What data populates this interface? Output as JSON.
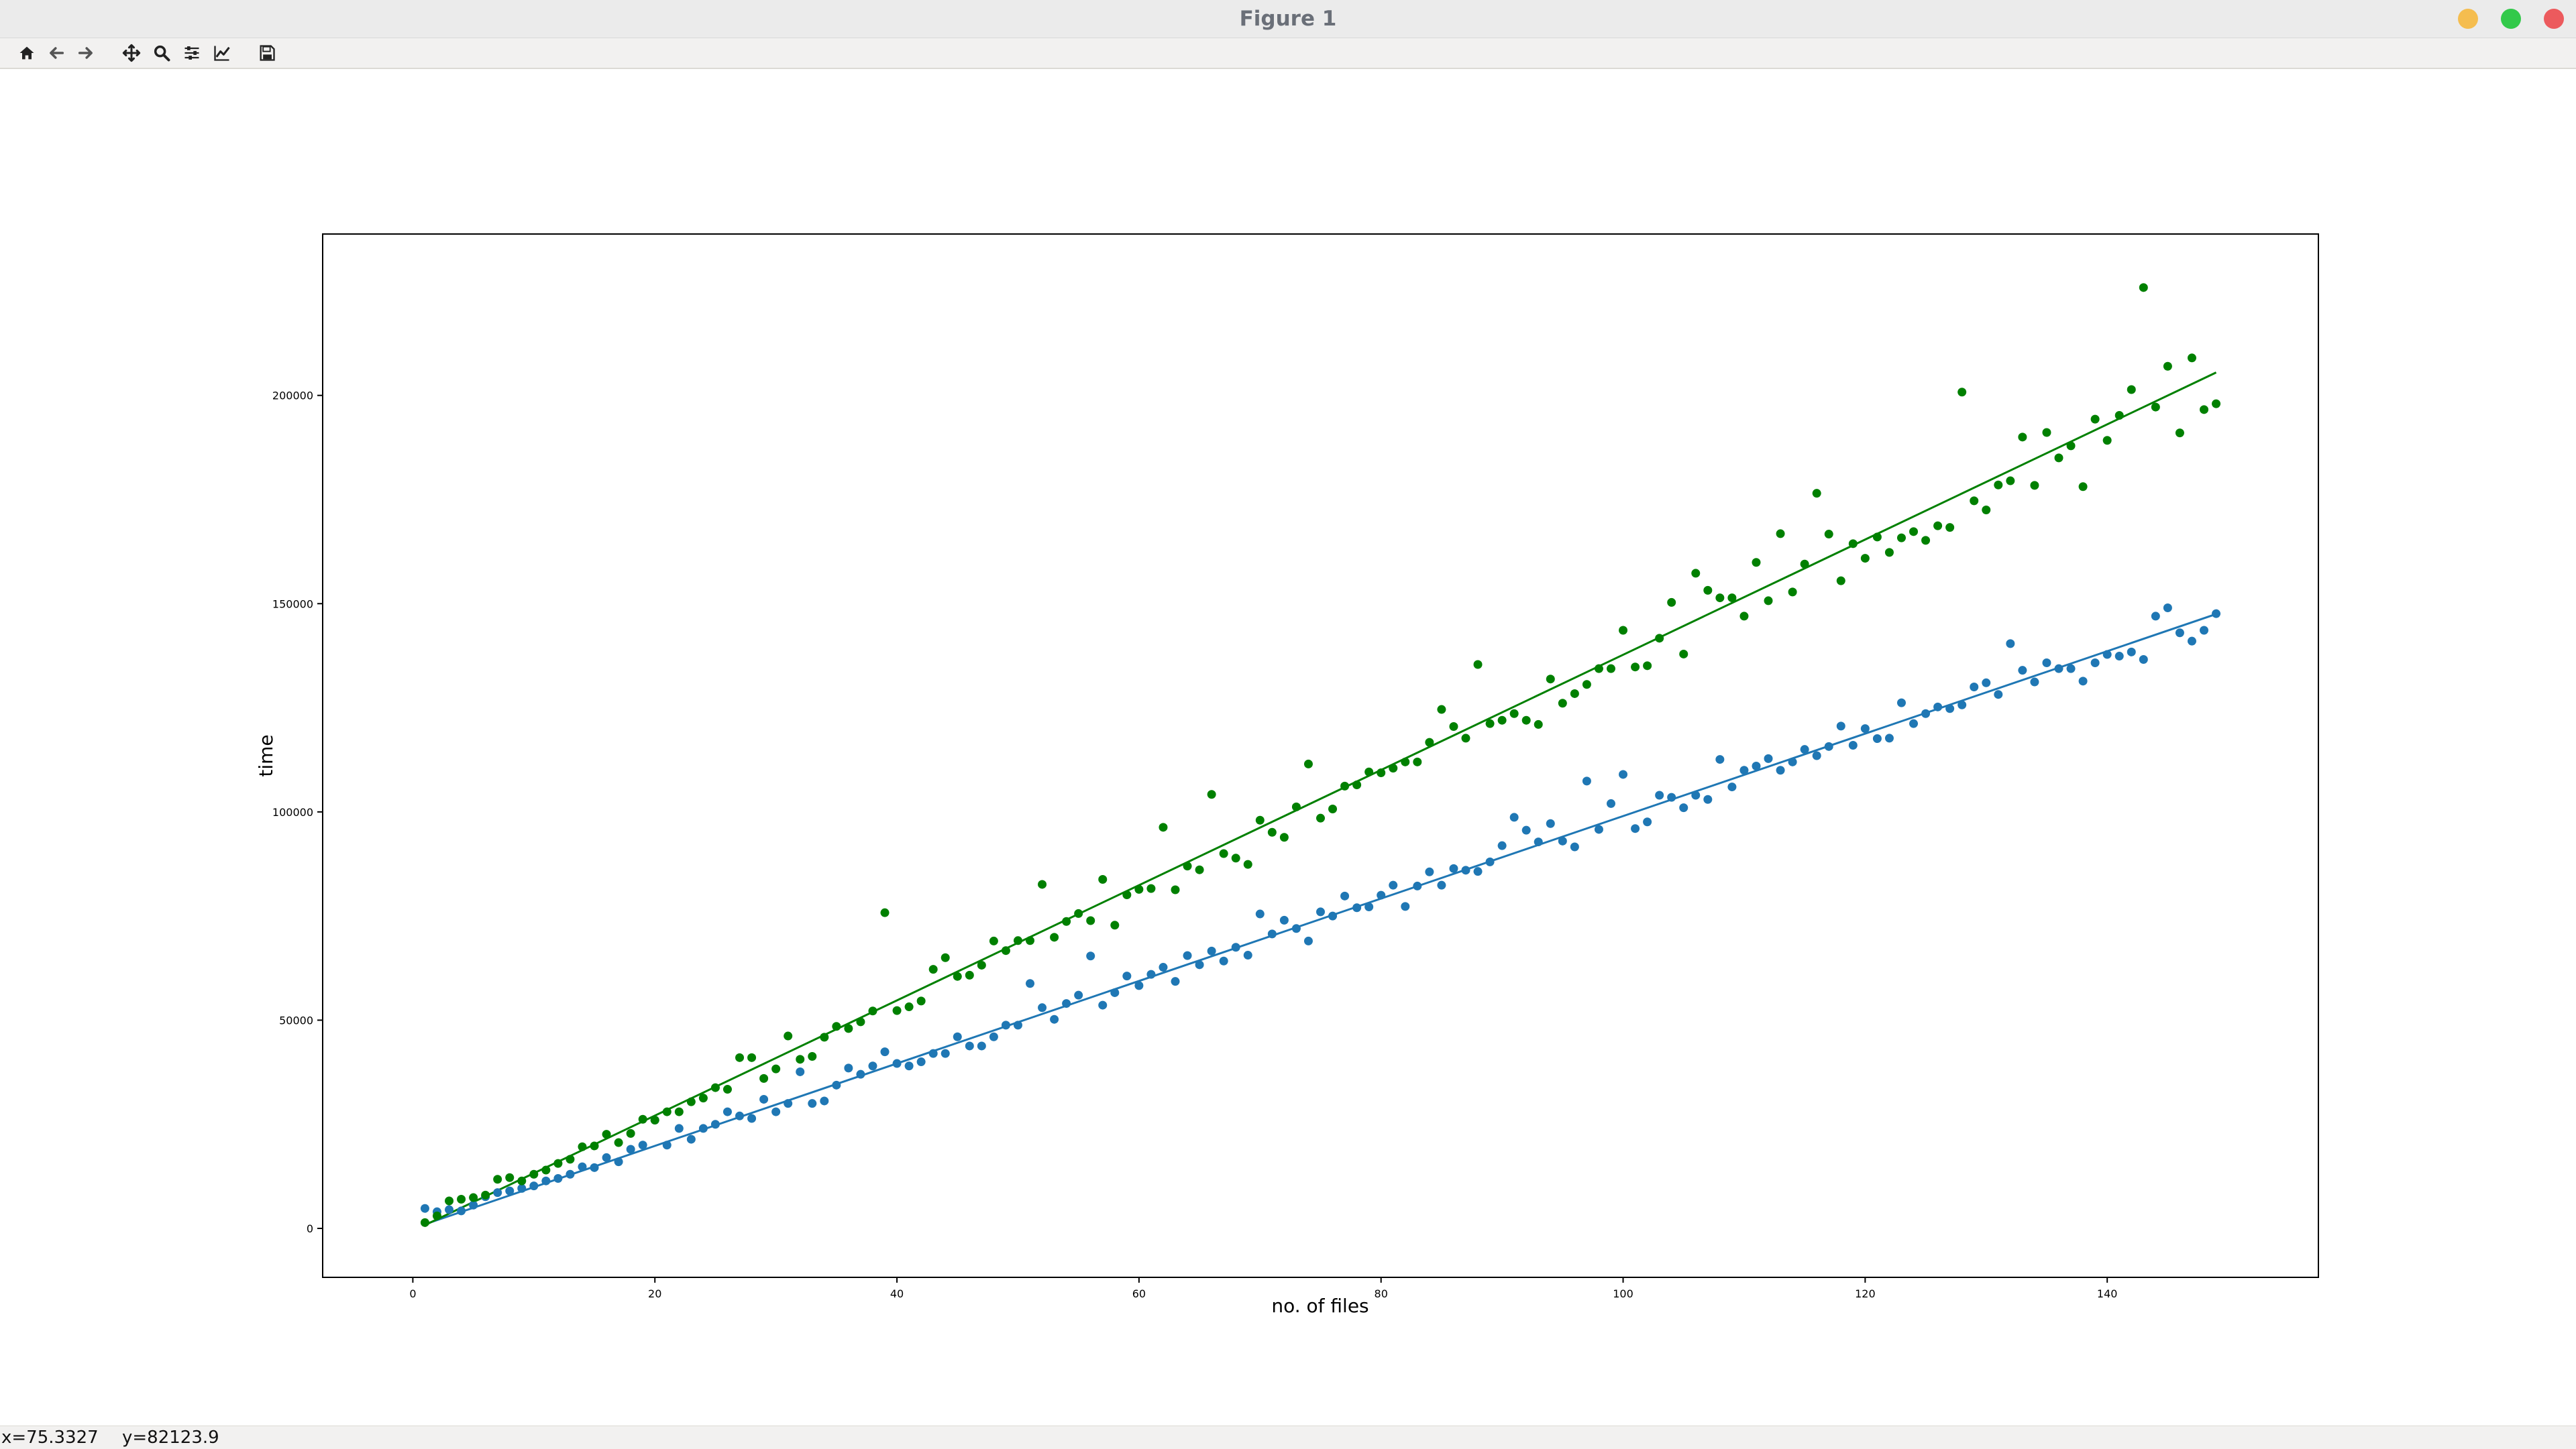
{
  "window": {
    "title": "Figure 1"
  },
  "toolbar": {
    "tools": [
      {
        "name": "home-icon"
      },
      {
        "name": "back-arrow-icon"
      },
      {
        "name": "forward-arrow-icon"
      },
      {
        "name": "pan-icon"
      },
      {
        "name": "zoom-icon"
      },
      {
        "name": "configure-subplots-icon"
      },
      {
        "name": "edit-axis-icon"
      },
      {
        "name": "save-icon"
      }
    ]
  },
  "status": {
    "x": "x=75.3327",
    "y": "y=82123.9"
  },
  "colors": {
    "blue": "#1f77b4",
    "green": "#008000"
  },
  "chart_data": {
    "type": "scatter",
    "title": "",
    "xlabel": "no. of files",
    "ylabel": "time",
    "xlim": [
      -7.45,
      157.45
    ],
    "ylim": [
      -11750,
      238750
    ],
    "xticks": [
      0,
      20,
      40,
      60,
      80,
      100,
      120,
      140
    ],
    "yticks": [
      0,
      50000,
      100000,
      150000,
      200000
    ],
    "grid": false,
    "series": [
      {
        "color": "#1f77b4",
        "marker": "point",
        "x": [
          1,
          2,
          3,
          4,
          5,
          6,
          7,
          8,
          9,
          10,
          11,
          12,
          13,
          14,
          15,
          16,
          17,
          18,
          19,
          20,
          21,
          22,
          23,
          24,
          25,
          26,
          27,
          28,
          29,
          30,
          31,
          32,
          33,
          34,
          35,
          36,
          37,
          38,
          39,
          40,
          41,
          42,
          43,
          44,
          45,
          46,
          47,
          48,
          49,
          50,
          51,
          52,
          53,
          54,
          55,
          56,
          57,
          58,
          59,
          60,
          61,
          62,
          63,
          64,
          65,
          66,
          67,
          68,
          69,
          70,
          71,
          72,
          73,
          74,
          75,
          76,
          77,
          78,
          79,
          80,
          81,
          82,
          83,
          84,
          85,
          86,
          87,
          88,
          89,
          90,
          91,
          92,
          93,
          94,
          95,
          96,
          97,
          98,
          99,
          100,
          101,
          102,
          103,
          104,
          105,
          106,
          107,
          108,
          109,
          110,
          111,
          112,
          113,
          114,
          115,
          116,
          117,
          118,
          119,
          120,
          121,
          122,
          123,
          124,
          125,
          126,
          127,
          128,
          129,
          130,
          131,
          132,
          133,
          134,
          135,
          136,
          137,
          138,
          139,
          140,
          141,
          142,
          143,
          144,
          145,
          146,
          147,
          148,
          149
        ],
        "y": [
          4800,
          4000,
          4500,
          4200,
          5600,
          7600,
          8600,
          9000,
          9600,
          10200,
          11400,
          12000,
          13000,
          14800,
          14600,
          17000,
          16000,
          19000,
          20000,
          26000,
          20000,
          24000,
          21400,
          24000,
          25000,
          28000,
          27000,
          26400,
          31000,
          28000,
          30000,
          37600,
          30000,
          30600,
          34400,
          38500,
          37000,
          39000,
          42400,
          39600,
          39000,
          40000,
          42000,
          42000,
          46000,
          43800,
          43800,
          46000,
          48800,
          48800,
          58800,
          53000,
          50200,
          54000,
          56000,
          65400,
          53600,
          56600,
          60600,
          58300,
          61000,
          62700,
          59300,
          65500,
          63300,
          66600,
          64200,
          67500,
          65600,
          75500,
          70700,
          74000,
          72000,
          69000,
          76000,
          75000,
          79800,
          77000,
          77200,
          80000,
          82400,
          77300,
          82200,
          85600,
          82400,
          86400,
          86000,
          85700,
          88000,
          91900,
          98700,
          95600,
          92800,
          97200,
          93000,
          91600,
          107400,
          95800,
          102000,
          109000,
          96000,
          97600,
          104000,
          103500,
          101000,
          104000,
          103000,
          112600,
          106000,
          110000,
          111000,
          112800,
          110000,
          112000,
          115000,
          113500,
          115700,
          120600,
          116000,
          120000,
          117600,
          117700,
          126200,
          121200,
          123600,
          125200,
          124800,
          125700,
          130000,
          131000,
          128200,
          140400,
          134000,
          131200,
          135800,
          134400,
          134400,
          131400,
          135800,
          137800,
          137400,
          138400,
          136600,
          147000,
          149000,
          143000,
          141000,
          143600,
          147600
        ],
        "fit": [
          [
            1,
            1000
          ],
          [
            149,
            147500
          ]
        ]
      },
      {
        "color": "#008000",
        "marker": "point",
        "x": [
          1,
          2,
          3,
          4,
          5,
          6,
          7,
          8,
          9,
          10,
          11,
          12,
          13,
          14,
          15,
          16,
          17,
          18,
          19,
          20,
          21,
          22,
          23,
          24,
          25,
          26,
          27,
          28,
          29,
          30,
          31,
          32,
          33,
          34,
          35,
          36,
          37,
          38,
          39,
          40,
          41,
          42,
          43,
          44,
          45,
          46,
          47,
          48,
          49,
          50,
          51,
          52,
          53,
          54,
          55,
          56,
          57,
          58,
          59,
          60,
          61,
          62,
          63,
          64,
          65,
          66,
          67,
          68,
          69,
          70,
          71,
          72,
          73,
          74,
          75,
          76,
          77,
          78,
          79,
          80,
          81,
          82,
          83,
          84,
          85,
          86,
          87,
          88,
          89,
          90,
          91,
          92,
          93,
          94,
          95,
          96,
          97,
          98,
          99,
          100,
          101,
          102,
          103,
          104,
          105,
          106,
          107,
          108,
          109,
          110,
          111,
          112,
          113,
          114,
          115,
          116,
          117,
          118,
          119,
          120,
          121,
          122,
          123,
          124,
          125,
          126,
          127,
          128,
          129,
          130,
          131,
          132,
          133,
          134,
          135,
          136,
          137,
          138,
          139,
          140,
          141,
          142,
          143,
          144,
          145,
          146,
          147,
          148,
          149
        ],
        "y": [
          1400,
          3000,
          6600,
          7000,
          7400,
          8000,
          11800,
          12200,
          11400,
          13000,
          14000,
          15600,
          16600,
          19600,
          19800,
          22600,
          20600,
          22800,
          26200,
          26000,
          28000,
          28000,
          30400,
          31300,
          33800,
          33400,
          41000,
          41000,
          36000,
          38300,
          46200,
          40600,
          41300,
          45900,
          48500,
          48000,
          49600,
          52200,
          75800,
          52300,
          53200,
          54600,
          62200,
          65000,
          60500,
          60800,
          63200,
          69000,
          66700,
          69100,
          69100,
          82600,
          69900,
          73700,
          75600,
          73900,
          83800,
          72800,
          80100,
          81400,
          81600,
          96300,
          81300,
          87000,
          86100,
          104200,
          90000,
          88900,
          87400,
          98000,
          95100,
          93900,
          101200,
          111500,
          98500,
          100700,
          106200,
          106500,
          109600,
          109400,
          110500,
          112000,
          112000,
          116700,
          124600,
          120500,
          117700,
          135400,
          121200,
          122000,
          123600,
          122000,
          121000,
          131900,
          126100,
          128400,
          130600,
          134400,
          134400,
          143600,
          134800,
          135100,
          141700,
          150300,
          137900,
          157300,
          153200,
          151400,
          151400,
          147000,
          159900,
          150700,
          166800,
          152800,
          159500,
          176500,
          166700,
          155500,
          164400,
          160900,
          166000,
          162300,
          165800,
          167300,
          165200,
          168700,
          168300,
          200800,
          174700,
          172500,
          178500,
          179500,
          190000,
          178400,
          191100,
          185000,
          187900,
          178100,
          194300,
          189200,
          195200,
          201400,
          225900,
          197200,
          207000,
          191000,
          209000,
          196600,
          198000
        ],
        "fit": [
          [
            1,
            800
          ],
          [
            149,
            205500
          ]
        ]
      }
    ]
  }
}
